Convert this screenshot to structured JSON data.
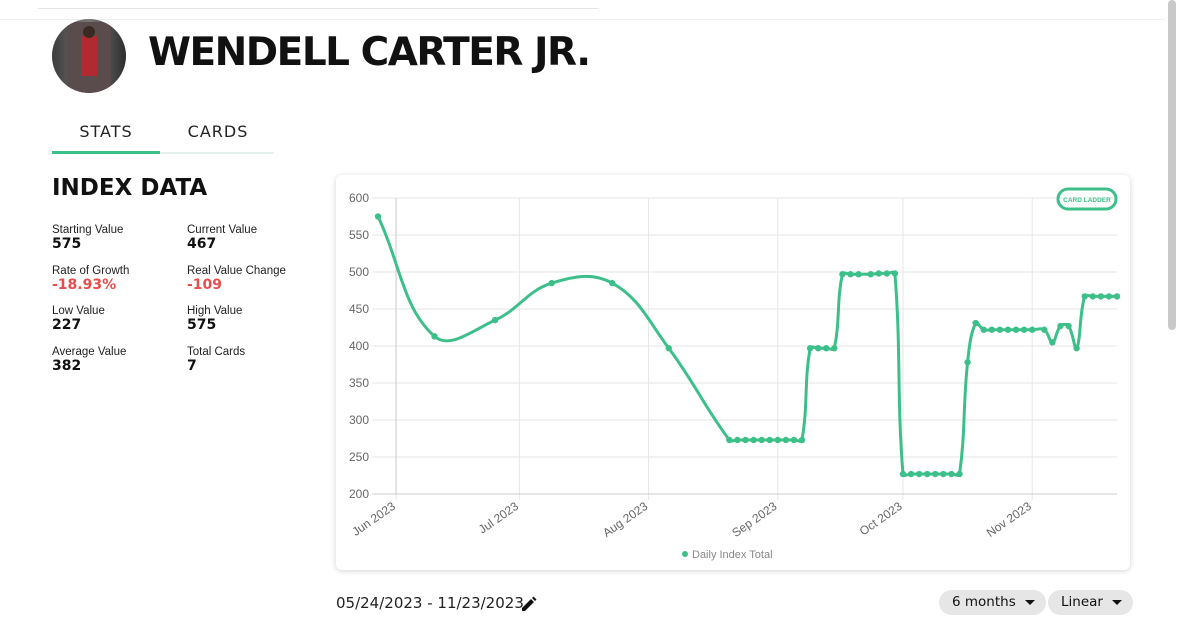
{
  "header": {
    "player_name": "WENDELL CARTER JR."
  },
  "tabs": [
    "STATS",
    "CARDS"
  ],
  "index_data": {
    "title": "INDEX DATA",
    "stats": [
      {
        "label": "Starting Value",
        "value": "575"
      },
      {
        "label": "Current Value",
        "value": "467"
      },
      {
        "label": "Rate of Growth",
        "value": "-18.93%"
      },
      {
        "label": "Real Value Change",
        "value": "-109"
      },
      {
        "label": "Low Value",
        "value": "227"
      },
      {
        "label": "High Value",
        "value": "575"
      },
      {
        "label": "Average Value",
        "value": "382"
      },
      {
        "label": "Total Cards",
        "value": "7"
      }
    ]
  },
  "chart_data": {
    "type": "line",
    "logo": "CARD LADDER",
    "x": [
      0,
      14,
      29,
      43,
      58,
      72,
      87,
      89,
      91,
      93,
      95,
      97,
      99,
      101,
      103,
      105,
      107,
      109,
      111,
      113,
      115,
      117,
      119,
      122,
      124,
      126,
      128,
      130,
      132,
      134,
      136,
      138,
      140,
      142,
      144,
      146,
      148,
      150,
      152,
      154,
      156,
      158,
      160,
      162,
      165,
      167,
      169,
      171,
      173,
      175,
      177,
      179,
      181,
      183
    ],
    "series": [
      {
        "name": "Daily Index Total",
        "color": "#3dbf8a",
        "values": [
          575,
          413,
          435,
          485,
          485,
          397,
          273,
          273,
          273,
          273,
          273,
          273,
          273,
          273,
          273,
          273,
          397,
          397,
          397,
          397,
          497,
          497,
          497,
          497,
          498,
          498,
          498,
          227,
          227,
          227,
          227,
          227,
          227,
          227,
          227,
          378,
          431,
          422,
          422,
          422,
          422,
          422,
          422,
          422,
          422,
          405,
          427,
          427,
          397,
          467,
          467,
          467,
          467,
          467
        ]
      }
    ],
    "xlim": [
      0,
      183
    ],
    "xticks": [
      {
        "value": 4.5,
        "label": "Jun 2023"
      },
      {
        "value": 35,
        "label": "Jul 2023"
      },
      {
        "value": 67,
        "label": "Aug 2023"
      },
      {
        "value": 99,
        "label": "Sep 2023"
      },
      {
        "value": 130,
        "label": "Oct 2023"
      },
      {
        "value": 162,
        "label": "Nov 2023"
      }
    ],
    "ylim": [
      200,
      600
    ],
    "yticks": [
      200,
      250,
      300,
      350,
      400,
      450,
      500,
      550,
      600
    ],
    "grid": true
  },
  "date_range": "05/24/2023 - 11/23/2023",
  "controls": [
    "6 months",
    "Linear"
  ]
}
